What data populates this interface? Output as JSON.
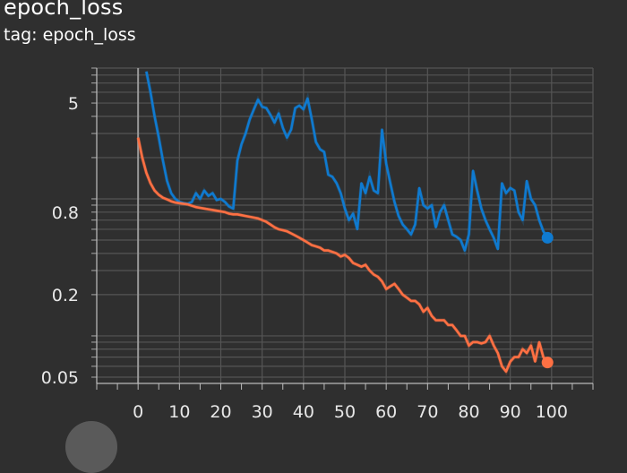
{
  "header": {
    "title": "epoch_loss",
    "tag_label": "tag: epoch_loss"
  },
  "chart_data": {
    "type": "line",
    "title": "epoch_loss",
    "xlabel": "",
    "ylabel": "",
    "xlim": [
      -10,
      110
    ],
    "ylim": [
      0.045,
      9
    ],
    "y_scale": "log",
    "grid": true,
    "x_ticks": [
      0,
      10,
      20,
      30,
      40,
      50,
      60,
      70,
      80,
      90,
      100
    ],
    "y_ticks": [
      0.05,
      0.2,
      0.8,
      5
    ],
    "y_tick_labels": [
      "0.05",
      "0.2",
      "0.8",
      "5"
    ],
    "series": [
      {
        "color": "#1f77b4",
        "line_color": "#0f7ad0",
        "x": [
          2,
          3,
          4,
          5,
          6,
          7,
          8,
          9,
          10,
          11,
          12,
          13,
          14,
          15,
          16,
          17,
          18,
          19,
          20,
          21,
          22,
          23,
          24,
          25,
          26,
          27,
          28,
          29,
          30,
          31,
          32,
          33,
          34,
          35,
          36,
          37,
          38,
          39,
          40,
          41,
          42,
          43,
          44,
          45,
          46,
          47,
          48,
          49,
          50,
          51,
          52,
          53,
          54,
          55,
          56,
          57,
          58,
          59,
          60,
          61,
          62,
          63,
          64,
          65,
          66,
          67,
          68,
          69,
          70,
          71,
          72,
          73,
          74,
          75,
          76,
          77,
          78,
          79,
          80,
          81,
          82,
          83,
          84,
          85,
          86,
          87,
          88,
          89,
          90,
          91,
          92,
          93,
          94,
          95,
          96,
          97,
          98,
          99
        ],
        "values": [
          8.5,
          6.0,
          4.0,
          2.8,
          1.9,
          1.35,
          1.1,
          1.0,
          0.95,
          0.93,
          0.92,
          0.95,
          1.1,
          1.0,
          1.15,
          1.05,
          1.1,
          0.98,
          1.0,
          0.95,
          0.88,
          0.85,
          1.9,
          2.5,
          3.0,
          3.8,
          4.5,
          5.3,
          4.7,
          4.6,
          4.1,
          3.6,
          4.2,
          3.3,
          2.8,
          3.2,
          4.6,
          4.8,
          4.5,
          5.4,
          3.8,
          2.6,
          2.3,
          2.2,
          1.5,
          1.45,
          1.3,
          1.1,
          0.85,
          0.7,
          0.78,
          0.6,
          1.3,
          1.1,
          1.45,
          1.15,
          1.1,
          3.2,
          1.8,
          1.3,
          0.95,
          0.75,
          0.65,
          0.6,
          0.55,
          0.65,
          1.2,
          0.9,
          0.85,
          0.9,
          0.62,
          0.8,
          0.9,
          0.7,
          0.55,
          0.53,
          0.5,
          0.42,
          0.55,
          1.6,
          1.15,
          0.85,
          0.7,
          0.6,
          0.52,
          0.43,
          1.3,
          1.1,
          1.2,
          1.15,
          0.8,
          0.7,
          1.35,
          1.0,
          0.9,
          0.7,
          0.58,
          0.52
        ]
      },
      {
        "color": "#ff7043",
        "line_color": "#ff7043",
        "x": [
          0,
          1,
          2,
          3,
          4,
          5,
          6,
          7,
          8,
          9,
          10,
          11,
          12,
          13,
          14,
          15,
          16,
          17,
          18,
          19,
          20,
          21,
          22,
          23,
          24,
          25,
          26,
          27,
          28,
          29,
          30,
          31,
          32,
          33,
          34,
          35,
          36,
          37,
          38,
          39,
          40,
          41,
          42,
          43,
          44,
          45,
          46,
          47,
          48,
          49,
          50,
          51,
          52,
          53,
          54,
          55,
          56,
          57,
          58,
          59,
          60,
          61,
          62,
          63,
          64,
          65,
          66,
          67,
          68,
          69,
          70,
          71,
          72,
          73,
          74,
          75,
          76,
          77,
          78,
          79,
          80,
          81,
          82,
          83,
          84,
          85,
          86,
          87,
          88,
          89,
          90,
          91,
          92,
          93,
          94,
          95,
          96,
          97,
          98,
          99
        ],
        "values": [
          2.8,
          2.0,
          1.55,
          1.3,
          1.15,
          1.07,
          1.02,
          0.99,
          0.96,
          0.94,
          0.93,
          0.92,
          0.91,
          0.89,
          0.87,
          0.86,
          0.85,
          0.84,
          0.83,
          0.82,
          0.81,
          0.8,
          0.78,
          0.77,
          0.77,
          0.76,
          0.75,
          0.74,
          0.73,
          0.72,
          0.7,
          0.68,
          0.65,
          0.62,
          0.6,
          0.59,
          0.58,
          0.56,
          0.54,
          0.52,
          0.5,
          0.48,
          0.46,
          0.45,
          0.44,
          0.42,
          0.42,
          0.41,
          0.4,
          0.38,
          0.39,
          0.37,
          0.34,
          0.33,
          0.32,
          0.33,
          0.3,
          0.28,
          0.27,
          0.25,
          0.22,
          0.23,
          0.24,
          0.22,
          0.2,
          0.19,
          0.18,
          0.18,
          0.17,
          0.15,
          0.16,
          0.14,
          0.13,
          0.13,
          0.13,
          0.12,
          0.12,
          0.11,
          0.1,
          0.1,
          0.085,
          0.09,
          0.09,
          0.088,
          0.09,
          0.1,
          0.085,
          0.075,
          0.06,
          0.055,
          0.065,
          0.07,
          0.07,
          0.08,
          0.075,
          0.085,
          0.065,
          0.09,
          0.07,
          0.064
        ]
      }
    ],
    "legend": "none"
  }
}
